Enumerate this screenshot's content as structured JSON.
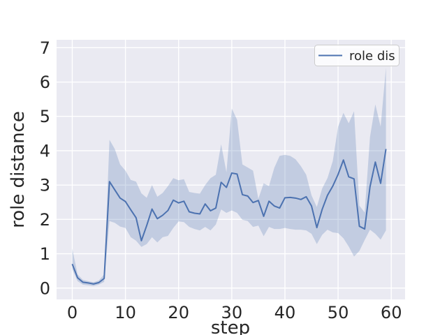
{
  "colors": {
    "figure_background": "#ffffff",
    "axes_background": "#eaeaf2",
    "grid": "#ffffff",
    "text": "#262626",
    "line": "#4c72b0",
    "band": "#4c72b0",
    "band_opacity": 0.25,
    "legend_background": "#ffffff",
    "legend_border": "#cccccc"
  },
  "chart_data": {
    "type": "line",
    "title": "",
    "xlabel": "step",
    "ylabel": "role distance",
    "grid": true,
    "style": "seaborn-darkgrid",
    "legend": {
      "position": "upper-right",
      "entries": [
        "role dis"
      ]
    },
    "xlim": [
      -2.95,
      62.6
    ],
    "ylim": [
      -0.33,
      7.23
    ],
    "xticks": [
      0,
      10,
      20,
      30,
      40,
      50,
      60
    ],
    "yticks": [
      0,
      1,
      2,
      3,
      4,
      5,
      6,
      7
    ],
    "x": [
      0,
      1,
      2,
      3,
      4,
      5,
      6,
      7,
      8,
      9,
      10,
      11,
      12,
      13,
      14,
      15,
      16,
      17,
      18,
      19,
      20,
      21,
      22,
      23,
      24,
      25,
      26,
      27,
      28,
      29,
      30,
      31,
      32,
      33,
      34,
      35,
      36,
      37,
      38,
      39,
      40,
      41,
      42,
      43,
      44,
      45,
      46,
      47,
      48,
      49,
      50,
      51,
      52,
      53,
      54,
      55,
      56,
      57,
      58,
      59
    ],
    "series": [
      {
        "name": "role dis",
        "values": [
          0.7,
          0.3,
          0.17,
          0.15,
          0.12,
          0.16,
          0.28,
          3.1,
          2.86,
          2.62,
          2.52,
          2.28,
          2.05,
          1.38,
          1.82,
          2.3,
          2.02,
          2.12,
          2.26,
          2.56,
          2.48,
          2.53,
          2.22,
          2.18,
          2.16,
          2.45,
          2.25,
          2.33,
          3.08,
          2.93,
          3.35,
          3.32,
          2.72,
          2.68,
          2.49,
          2.55,
          2.09,
          2.53,
          2.39,
          2.33,
          2.63,
          2.64,
          2.62,
          2.58,
          2.66,
          2.39,
          1.76,
          2.29,
          2.7,
          2.97,
          3.31,
          3.73,
          3.24,
          3.18,
          1.8,
          1.72,
          2.95,
          3.67,
          3.05,
          4.05
        ],
        "band_high": [
          1.15,
          0.4,
          0.24,
          0.2,
          0.17,
          0.22,
          0.4,
          4.32,
          4.05,
          3.6,
          3.42,
          3.15,
          3.1,
          2.76,
          2.63,
          3.0,
          2.66,
          2.77,
          2.97,
          3.2,
          3.14,
          3.17,
          2.8,
          2.77,
          2.75,
          3.0,
          3.2,
          3.3,
          4.19,
          3.37,
          5.23,
          4.9,
          3.6,
          3.51,
          3.42,
          2.6,
          3.05,
          2.97,
          3.5,
          3.85,
          3.88,
          3.85,
          3.75,
          3.55,
          3.3,
          2.7,
          2.36,
          2.9,
          3.2,
          3.7,
          4.7,
          5.1,
          4.8,
          5.15,
          2.4,
          2.2,
          4.4,
          5.35,
          4.7,
          6.42
        ],
        "band_low": [
          0.55,
          0.2,
          0.1,
          0.08,
          0.06,
          0.1,
          0.18,
          1.95,
          1.9,
          1.79,
          1.75,
          1.48,
          1.38,
          1.2,
          1.28,
          1.48,
          1.33,
          1.48,
          1.52,
          1.75,
          1.94,
          1.92,
          1.78,
          1.72,
          1.68,
          1.78,
          1.68,
          1.85,
          2.29,
          2.19,
          2.26,
          2.19,
          1.99,
          1.95,
          1.78,
          1.82,
          1.51,
          1.78,
          1.72,
          1.72,
          1.75,
          1.72,
          1.7,
          1.7,
          1.68,
          1.58,
          1.28,
          1.55,
          1.7,
          1.62,
          1.6,
          1.45,
          1.21,
          0.92,
          1.08,
          1.4,
          1.7,
          1.58,
          1.41,
          1.68
        ]
      }
    ]
  }
}
